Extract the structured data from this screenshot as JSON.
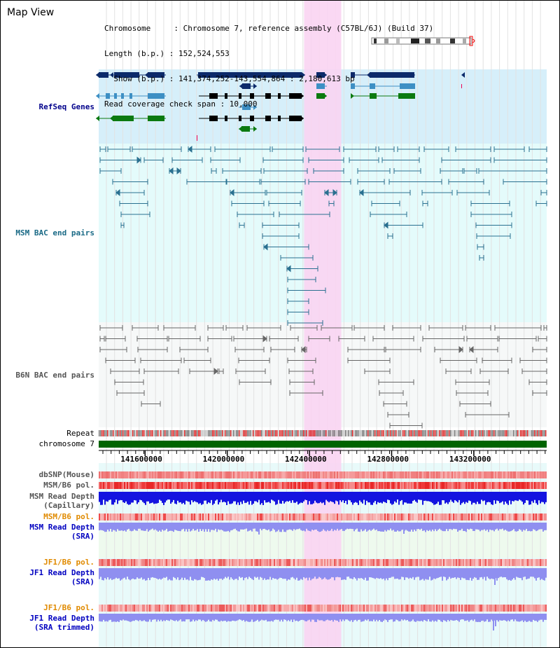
{
  "header": {
    "title": "Map View",
    "info_rows": [
      "Chromosome     : Chromosome 7, reference assembly (C57BL/6J) (Build 37)",
      "Length (b.p.) : 152,524,553",
      "  Show (b.p.) : 141,374,252-143,554,864 : 2,180,613 bp",
      "Read coverage check span : 10,000"
    ]
  },
  "view": {
    "start": 141374252,
    "end": 143554864,
    "highlight_start": 142374000,
    "highlight_end": 142555000
  },
  "axis": {
    "ticks": [
      141600000,
      142000000,
      142400000,
      142800000,
      143200000
    ],
    "tick_labels": [
      "141600000",
      "142000000",
      "142400000",
      "142800000",
      "143200000"
    ]
  },
  "tracks": {
    "refseq": "RefSeq Genes",
    "msm_bac": "MSM BAC end pairs",
    "b6n_bac": "B6N BAC end pairs",
    "repeat": "Repeat",
    "chromosome": "chromosome 7",
    "dbsnp": "dbSNP(Mouse)",
    "msm_pol1": "MSM/B6 pol.",
    "msm_depth_cap_1": "MSM Read Depth",
    "msm_depth_cap_2": "(Capillary)",
    "msm_pol2": "MSM/B6 pol.",
    "msm_depth_sra_1": "MSM Read Depth",
    "msm_depth_sra_2": "(SRA)",
    "jf1_pol1": "JF1/B6 pol.",
    "jf1_depth_sra_1": "JF1 Read Depth",
    "jf1_depth_sra_2": "(SRA)",
    "jf1_pol2": "JF1/B6 pol.",
    "jf1_depth_trim_1": "JF1 Read Depth",
    "jf1_depth_trim_2": "(SRA trimmed)"
  },
  "colors": {
    "refseq_bg": "#d6effa",
    "msm_bg": "#e4fbfb",
    "b6n_bg": "#f6f8f8",
    "highlight": "#f9d4f2",
    "refseq_label": "#00008b",
    "msm_label": "#1a6a86",
    "b6n_label": "#555555",
    "polymorphism_label": "#e08a00",
    "depth_label": "#0000c0",
    "chromosome_bar": "#006400"
  }
}
